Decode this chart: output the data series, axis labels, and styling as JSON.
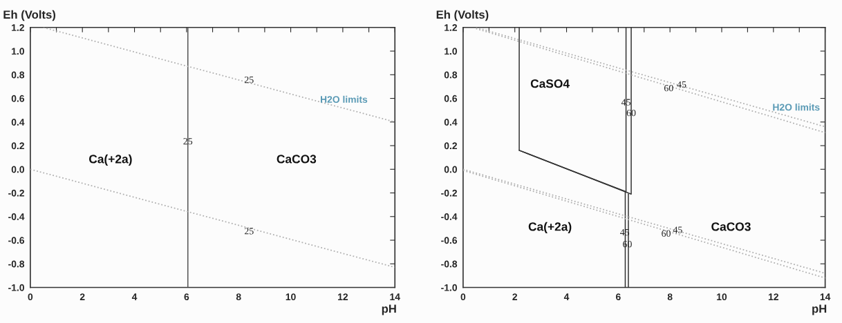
{
  "chart_data": [
    {
      "type": "line",
      "xlabel": "pH",
      "ylabel": "Eh (Volts)",
      "xlim": [
        0,
        14
      ],
      "ylim": [
        -1.0,
        1.2
      ],
      "xticks": [
        0,
        {
          "value": 1,
          "label": null
        },
        2,
        {
          "value": 3,
          "label": null
        },
        4,
        {
          "value": 5,
          "label": null
        },
        6,
        {
          "value": 7,
          "label": null
        },
        8,
        {
          "value": 9,
          "label": null
        },
        10,
        {
          "value": 11,
          "label": null
        },
        12,
        {
          "value": 13,
          "label": null
        },
        14
      ],
      "yticks": [
        {
          "value": -1.0,
          "label": "-1.0"
        },
        {
          "value": -0.8,
          "label": "-0.8"
        },
        {
          "value": -0.6,
          "label": "-0.6"
        },
        {
          "value": -0.4,
          "label": "-0.4"
        },
        {
          "value": -0.2,
          "label": "-0.2"
        },
        {
          "value": 0.0,
          "label": "0.0"
        },
        {
          "value": 0.2,
          "label": "0.2"
        },
        {
          "value": 0.4,
          "label": "0.4"
        },
        {
          "value": 0.6,
          "label": "0.6"
        },
        {
          "value": 0.8,
          "label": "0.8"
        },
        {
          "value": 1.0,
          "label": "1.0"
        },
        {
          "value": 1.2,
          "label": "1.2"
        }
      ],
      "grid": false,
      "legend": false,
      "series": [
        {
          "x": [
            6.05,
            6.05,
            6.05
          ],
          "values": [
            -1.0,
            0.23,
            1.2
          ],
          "color": "#555555",
          "line_style": "solid"
        },
        {
          "x": [
            0.5,
            14
          ],
          "values": [
            1.2,
            0.4
          ],
          "color": "#b0b0b0",
          "line_style": "dotted"
        },
        {
          "x": [
            0,
            14
          ],
          "values": [
            0.0,
            -0.83
          ],
          "color": "#b0b0b0",
          "line_style": "dotted"
        }
      ],
      "annotations": [
        {
          "text": "25",
          "x": 8.4,
          "y": 0.75
        },
        {
          "text": "25",
          "x": 6.05,
          "y": 0.23
        },
        {
          "text": "25",
          "x": 8.4,
          "y": -0.53
        },
        "H2O limits",
        "Ca(+2a)",
        "CaCO3"
      ]
    },
    {
      "type": "line",
      "xlabel": "pH",
      "ylabel": "Eh (Volts)",
      "xlim": [
        0,
        14
      ],
      "ylim": [
        -1.0,
        1.2
      ],
      "xticks": [
        0,
        {
          "value": 1,
          "label": null
        },
        2,
        {
          "value": 3,
          "label": null
        },
        4,
        {
          "value": 5,
          "label": null
        },
        6,
        {
          "value": 7,
          "label": null
        },
        8,
        {
          "value": 9,
          "label": null
        },
        10,
        {
          "value": 11,
          "label": null
        },
        12,
        {
          "value": 13,
          "label": null
        },
        14
      ],
      "yticks": [
        {
          "value": -1.0,
          "label": "-1.0"
        },
        {
          "value": -0.8,
          "label": "-0.8"
        },
        {
          "value": -0.6,
          "label": "-0.6"
        },
        {
          "value": -0.4,
          "label": "-0.4"
        },
        {
          "value": -0.2,
          "label": "-0.2"
        },
        {
          "value": 0.0,
          "label": "0.0"
        },
        {
          "value": 0.2,
          "label": "0.2"
        },
        {
          "value": 0.4,
          "label": "0.4"
        },
        {
          "value": 0.6,
          "label": "0.6"
        },
        {
          "value": 0.8,
          "label": "0.8"
        },
        {
          "value": 1.0,
          "label": "1.0"
        },
        {
          "value": 1.2,
          "label": "1.2"
        }
      ],
      "grid": false,
      "legend": false,
      "series": [
        {
          "x": [
            2.17,
            2.17,
            6.3,
            6.3
          ],
          "values": [
            1.2,
            0.16,
            -0.19,
            1.2
          ],
          "color": "#333333",
          "line_style": "solid"
        },
        {
          "x": [
            2.17,
            6.5,
            6.5
          ],
          "values": [
            0.16,
            -0.21,
            1.2
          ],
          "color": "#333333",
          "line_style": "solid"
        },
        {
          "x": [
            6.27,
            6.27
          ],
          "values": [
            -0.19,
            -1.0
          ],
          "color": "#333333",
          "line_style": "solid"
        },
        {
          "x": [
            6.39,
            6.39
          ],
          "values": [
            -0.21,
            -1.0
          ],
          "color": "#333333",
          "line_style": "solid"
        },
        {
          "x": [
            0.5,
            14
          ],
          "values": [
            1.2,
            0.36
          ],
          "color": "#b0b0b0",
          "line_style": "dotted"
        },
        {
          "x": [
            0.5,
            14
          ],
          "values": [
            1.19,
            0.31
          ],
          "color": "#b0b0b0",
          "line_style": "dotted"
        },
        {
          "x": [
            0,
            14
          ],
          "values": [
            0.0,
            -0.88
          ],
          "color": "#b0b0b0",
          "line_style": "dotted"
        },
        {
          "x": [
            0,
            14
          ],
          "values": [
            -0.01,
            -0.92
          ],
          "color": "#b0b0b0",
          "line_style": "dotted"
        }
      ],
      "annotations": [
        {
          "text": "45",
          "x": 6.3,
          "y": 0.56
        },
        {
          "text": "60",
          "x": 6.5,
          "y": 0.47
        },
        {
          "text": "60",
          "x": 7.95,
          "y": 0.68
        },
        {
          "text": "45",
          "x": 8.45,
          "y": 0.71
        },
        "H2O limits",
        "CaSO4",
        {
          "text": "45",
          "x": 6.25,
          "y": -0.54
        },
        {
          "text": "60",
          "x": 6.35,
          "y": -0.64
        },
        {
          "text": "60",
          "x": 7.85,
          "y": -0.55
        },
        {
          "text": "45",
          "x": 8.3,
          "y": -0.52
        },
        "Ca(+2a)",
        "CaCO3"
      ]
    }
  ]
}
